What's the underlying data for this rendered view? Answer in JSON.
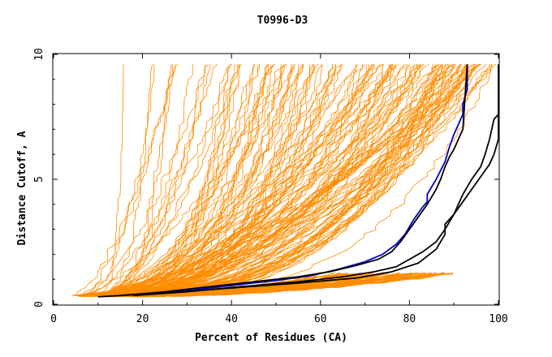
{
  "chart_data": {
    "type": "line",
    "title": "T0996-D3",
    "xlabel": "Percent of Residues (CA)",
    "ylabel": "Distance Cutoff, A",
    "xlim": [
      0,
      100
    ],
    "ylim": [
      0,
      10
    ],
    "x_ticks": [
      "0",
      "20",
      "40",
      "60",
      "80",
      "100"
    ],
    "y_ticks": [
      "0",
      "5",
      "10"
    ],
    "grid": false,
    "legend": "none",
    "colors": {
      "background_models": "#ff8c00",
      "highlight_blue": "#0000cc",
      "highlight_black": "#000000"
    },
    "background_series_count": 140,
    "highlight_series": [
      {
        "color": "#0000cc",
        "x": [
          22,
          30,
          40,
          50,
          58,
          64,
          70,
          74,
          77,
          79,
          81,
          83,
          84,
          84,
          86,
          88,
          89,
          90,
          91,
          92,
          92,
          93,
          93
        ],
        "y": [
          0.4,
          0.55,
          0.75,
          0.95,
          1.15,
          1.4,
          1.7,
          2.0,
          2.4,
          2.8,
          3.4,
          3.9,
          4.1,
          4.4,
          5.0,
          5.7,
          6.3,
          6.8,
          7.2,
          7.6,
          8.0,
          8.6,
          9.6
        ]
      },
      {
        "color": "#000000",
        "x": [
          15,
          25,
          35,
          45,
          55,
          62,
          68,
          73,
          76,
          78,
          80,
          82,
          84,
          86,
          87,
          88,
          89,
          90,
          92,
          93
        ],
        "y": [
          0.35,
          0.5,
          0.7,
          0.9,
          1.1,
          1.3,
          1.55,
          1.8,
          2.1,
          2.5,
          3.0,
          3.5,
          4.0,
          4.6,
          5.0,
          5.5,
          5.9,
          6.2,
          7.0,
          9.6
        ]
      },
      {
        "color": "#000000",
        "x": [
          18,
          30,
          42,
          55,
          65,
          72,
          77,
          80,
          83,
          86,
          88,
          90,
          92,
          94,
          96,
          97,
          98,
          99,
          100
        ],
        "y": [
          0.35,
          0.5,
          0.7,
          0.9,
          1.1,
          1.3,
          1.5,
          1.8,
          2.1,
          2.5,
          3.0,
          3.6,
          4.4,
          5.0,
          5.5,
          6.0,
          6.6,
          7.4,
          7.6
        ]
      },
      {
        "color": "#000000",
        "x": [
          10,
          25,
          40,
          55,
          68,
          76,
          82,
          86,
          88,
          88,
          90,
          92,
          94,
          96,
          98,
          99,
          100,
          100
        ],
        "y": [
          0.3,
          0.45,
          0.65,
          0.85,
          1.05,
          1.3,
          1.65,
          2.2,
          2.8,
          3.2,
          3.6,
          4.1,
          4.6,
          5.1,
          5.6,
          6.0,
          6.6,
          9.6
        ]
      }
    ]
  }
}
